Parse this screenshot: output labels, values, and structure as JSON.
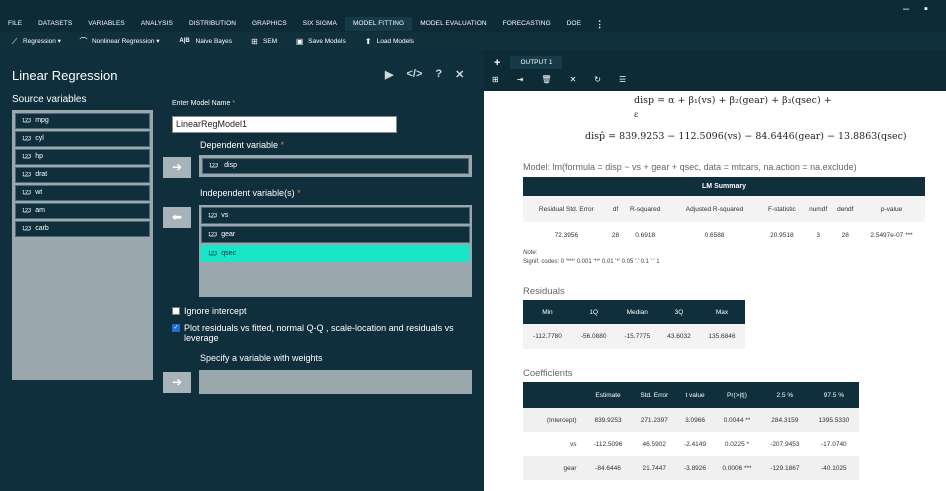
{
  "menu": {
    "items": [
      "FILE",
      "DATASETS",
      "VARIABLES",
      "ANALYSIS",
      "DISTRIBUTION",
      "GRAPHICS",
      "SIX SIGMA",
      "MODEL FITTING",
      "MODEL EVALUATION",
      "FORECASTING",
      "DOE"
    ],
    "active": "MODEL FITTING",
    "more": "⋮",
    "minimize": "–",
    "maximize": "▪"
  },
  "toolbar": {
    "regression": "Regression ▾",
    "nonlinear": "Nonlinear Regression ▾",
    "naive_bayes": "Naive Bayes",
    "nb_prefix": "A|B",
    "sem": "SEM",
    "save_models": "Save Models",
    "load_models": "Load Models"
  },
  "panel": {
    "title": "Linear Regression",
    "source_label": "Source variables",
    "source_vars": [
      "mpg",
      "cyl",
      "hp",
      "drat",
      "wt",
      "am",
      "carb"
    ],
    "var_icon": "1̲2̲3",
    "model_name_label": "Enter Model Name",
    "model_name_value": "LinearRegModel1",
    "dependent_label": "Dependent variable",
    "dependent_value": "disp",
    "independent_label": "Independent variable(s)",
    "independent_vars": [
      "vs",
      "gear",
      "qsec"
    ],
    "selected_independent": "qsec",
    "required_mark": "*",
    "ignore_intercept": "Ignore intercept",
    "plot_residuals": "Plot residuals vs fitted, normal Q-Q , scale-location and residuals vs leverage",
    "weights_label": "Specify a variable with weights",
    "arrow_right": "➔",
    "arrow_left": "⬅"
  },
  "output": {
    "tab_label": "OUTPUT 1",
    "formula_line1": "disp = α + β₁(vs) + β₂(gear) + β₃(qsec) +",
    "formula_line2": "ε",
    "fitted_line": "disp̂ = 839.9253 − 112.5096(vs) − 84.6446(gear) − 13.8863(qsec)",
    "model_call": "Model: lm(formula = disp ~ vs + gear + qsec, data = mtcars, na.action = na.exclude)",
    "lm_summary": {
      "caption": "LM Summary",
      "headers": [
        "Residual Std. Error",
        "df",
        "R-squared",
        "Adjusted R-squared",
        "F-statistic",
        "numdf",
        "dendf",
        "p-value"
      ],
      "values": [
        "72.3956",
        "28",
        "0.6918",
        "0.6588",
        "20.9518",
        "3",
        "28",
        "2.5497e-07 ***"
      ]
    },
    "note_label": "Note:",
    "signif_codes": "Signif. codes: 0 '***' 0.001 '**' 0.01 '*' 0.05 '.' 0.1 ' ' 1",
    "residuals_title": "Residuals",
    "residuals": {
      "headers": [
        "Min",
        "1Q",
        "Median",
        "3Q",
        "Max"
      ],
      "values": [
        "-112.7780",
        "-56.0880",
        "-15.7775",
        "43.6032",
        "135.6846"
      ]
    },
    "coefficients_title": "Coefficients",
    "coefficients": {
      "headers": [
        "",
        "Estimate",
        "Std. Error",
        "t value",
        "Pr(>|t|)",
        "2.5 %",
        "97.5 %"
      ],
      "rows": [
        [
          "(Intercept)",
          "839.9253",
          "271.2397",
          "3.0966",
          "0.0044 **",
          "284.3159",
          "1395.5330"
        ],
        [
          "vs",
          "-112.5096",
          "46.5902",
          "-2.4149",
          "0.0225 *",
          "-207.9453",
          "-17.0740"
        ],
        [
          "gear",
          "-84.6446",
          "21.7447",
          "-3.8926",
          "0.0006 ***",
          "-129.1867",
          "-40.1025"
        ]
      ]
    }
  },
  "colors": {
    "panel_bg": "#0e2f3b",
    "accent": "#19e6c8",
    "list_bg": "#9aa8ae"
  }
}
